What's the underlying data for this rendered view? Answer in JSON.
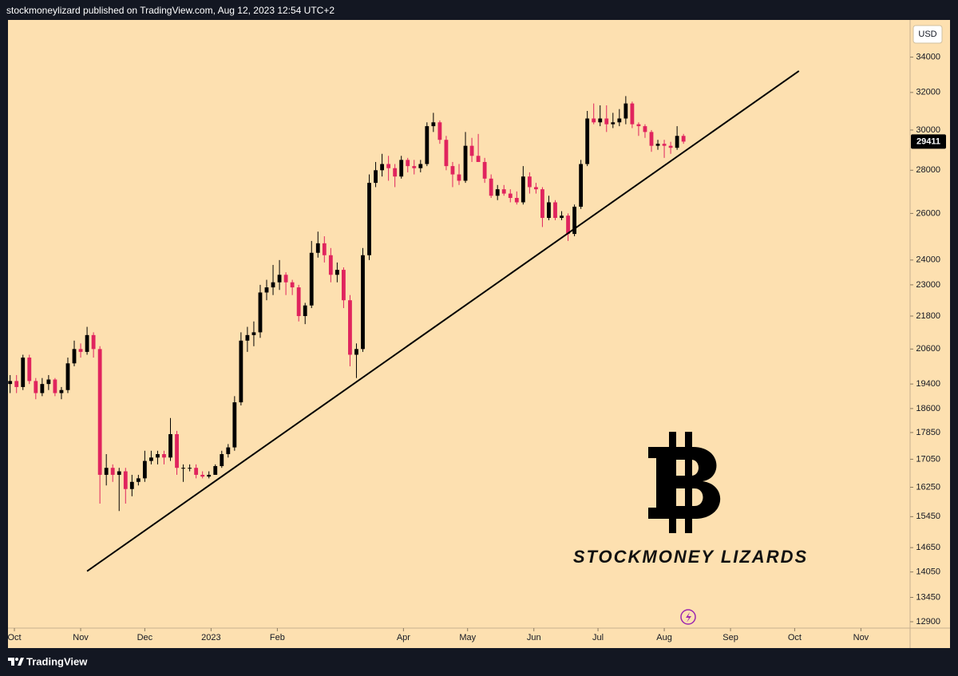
{
  "header": "stockmoneylizard published on TradingView.com, Aug 12, 2023 12:54 UTC+2",
  "footer": "TradingView",
  "chart_data": {
    "type": "candlestick",
    "currency": "USD",
    "last_price": 29411,
    "watermark": "STOCKMONEY LIZARDS",
    "up_color": "#000000",
    "down_color": "#e0245e",
    "background": "#fde0b0",
    "log_scale": true,
    "xlim": [
      -3,
      419
    ],
    "xticks": [
      {
        "value": 0,
        "label": "Oct"
      },
      {
        "value": 31,
        "label": "Nov"
      },
      {
        "value": 61,
        "label": "Dec"
      },
      {
        "value": 92,
        "label": "2023"
      },
      {
        "value": 123,
        "label": "Feb"
      },
      {
        "value": 182,
        "label": "Apr"
      },
      {
        "value": 212,
        "label": "May"
      },
      {
        "value": 243,
        "label": "Jun"
      },
      {
        "value": 273,
        "label": "Jul"
      },
      {
        "value": 304,
        "label": "Aug"
      },
      {
        "value": 335,
        "label": "Sep"
      },
      {
        "value": 365,
        "label": "Oct"
      },
      {
        "value": 396,
        "label": "Nov"
      }
    ],
    "ylim": [
      12330,
      36240
    ],
    "yticks": [
      34000,
      32000,
      30000,
      28000,
      26000,
      24000,
      23000,
      21800,
      20600,
      19400,
      18600,
      17850,
      17050,
      16250,
      15450,
      14650,
      14050,
      13450,
      12900
    ],
    "x": [
      -2,
      1,
      4,
      7,
      10,
      13,
      16,
      19,
      22,
      25,
      28,
      31,
      34,
      37,
      40,
      43,
      46,
      49,
      52,
      55,
      58,
      61,
      64,
      67,
      70,
      73,
      76,
      79,
      82,
      85,
      88,
      91,
      94,
      97,
      100,
      103,
      106,
      109,
      112,
      115,
      118,
      121,
      124,
      127,
      130,
      133,
      136,
      139,
      142,
      145,
      148,
      151,
      154,
      157,
      160,
      163,
      166,
      169,
      172,
      175,
      178,
      181,
      184,
      187,
      190,
      193,
      196,
      199,
      202,
      205,
      208,
      211,
      214,
      217,
      220,
      223,
      226,
      229,
      232,
      235,
      238,
      241,
      244,
      247,
      250,
      253,
      256,
      259,
      262,
      265,
      268,
      271,
      274,
      277,
      280,
      283,
      286,
      289,
      292,
      295,
      298,
      301,
      304,
      307,
      310,
      313
    ],
    "open": [
      19400,
      19500,
      19300,
      20300,
      19500,
      19100,
      19400,
      19550,
      19100,
      19200,
      20100,
      20600,
      20500,
      21100,
      20600,
      16600,
      16800,
      16600,
      16700,
      16200,
      16400,
      16500,
      17000,
      17100,
      17200,
      17100,
      17800,
      16800,
      16800,
      16800,
      16600,
      16550,
      16600,
      16850,
      17200,
      17400,
      18800,
      20900,
      21100,
      21200,
      22700,
      22900,
      23100,
      23400,
      23100,
      22900,
      21800,
      22200,
      24300,
      24700,
      24200,
      23400,
      23600,
      22400,
      20400,
      20600,
      24200,
      27400,
      28000,
      28300,
      28100,
      27700,
      28500,
      28200,
      28100,
      28300,
      30200,
      30400,
      29500,
      28200,
      27800,
      27500,
      29200,
      28700,
      28400,
      27600,
      26800,
      27100,
      26900,
      26700,
      26500,
      27700,
      27200,
      27100,
      25800,
      26500,
      25800,
      25900,
      25100,
      26300,
      28300,
      30600,
      30400,
      30600,
      30300,
      30400,
      30600,
      31400,
      30300,
      30200,
      29900,
      29200,
      29300,
      29200,
      29100,
      29700
    ],
    "high": [
      19700,
      19700,
      20400,
      20400,
      19600,
      19600,
      19700,
      19600,
      19300,
      20300,
      20900,
      20800,
      21400,
      21200,
      20700,
      17200,
      16900,
      16800,
      16800,
      16600,
      16600,
      17300,
      17300,
      17300,
      17300,
      18300,
      17900,
      16900,
      16900,
      16900,
      16700,
      16700,
      16900,
      17300,
      17500,
      19000,
      21200,
      21400,
      21600,
      23000,
      23200,
      23800,
      24000,
      23500,
      23200,
      23000,
      22300,
      24800,
      25200,
      25000,
      24500,
      23900,
      23700,
      22600,
      20800,
      24500,
      27800,
      28400,
      28800,
      28700,
      28300,
      28700,
      28600,
      28500,
      28500,
      30400,
      30900,
      30500,
      29700,
      28400,
      28300,
      29900,
      29600,
      29800,
      28600,
      27800,
      27300,
      27300,
      27100,
      27000,
      28200,
      27900,
      27400,
      27200,
      26800,
      26600,
      26100,
      26000,
      26400,
      28500,
      31000,
      31400,
      31300,
      31300,
      30900,
      31100,
      31800,
      31500,
      30400,
      30300,
      30000,
      29500,
      29500,
      29400,
      30200,
      29800
    ],
    "low": [
      19100,
      19100,
      19200,
      19400,
      18900,
      19000,
      19200,
      19000,
      18900,
      19100,
      20000,
      20300,
      20400,
      20300,
      15800,
      16300,
      16400,
      15600,
      15800,
      16000,
      16300,
      16400,
      16900,
      16900,
      16900,
      17000,
      16600,
      16400,
      16700,
      16500,
      16500,
      16500,
      16600,
      16800,
      17100,
      17300,
      18700,
      20500,
      20700,
      21000,
      22400,
      22600,
      22800,
      22600,
      22600,
      21600,
      21500,
      22100,
      24100,
      23900,
      23100,
      23100,
      22100,
      20000,
      19600,
      20500,
      24000,
      27200,
      27700,
      27500,
      27200,
      27600,
      27900,
      27800,
      27900,
      28200,
      29900,
      29300,
      28000,
      27200,
      27300,
      27400,
      28400,
      28500,
      27400,
      26700,
      26600,
      26800,
      26500,
      26400,
      26400,
      26900,
      26900,
      25400,
      25700,
      25700,
      25700,
      24800,
      25000,
      26200,
      28200,
      30300,
      30200,
      29900,
      30100,
      30200,
      30300,
      30100,
      29700,
      29600,
      28900,
      29000,
      28600,
      28800,
      29000,
      29300
    ],
    "close": [
      19500,
      19300,
      20300,
      19500,
      19100,
      19400,
      19550,
      19100,
      19200,
      20100,
      20600,
      20500,
      21100,
      20600,
      16600,
      16800,
      16600,
      16700,
      16200,
      16400,
      16500,
      17000,
      17100,
      17200,
      17100,
      17800,
      16800,
      16800,
      16800,
      16600,
      16550,
      16600,
      16850,
      17200,
      17400,
      18800,
      20900,
      21100,
      21200,
      22700,
      22900,
      23100,
      23400,
      23100,
      22900,
      21800,
      22200,
      24300,
      24700,
      24200,
      23400,
      23600,
      22400,
      20400,
      20600,
      24200,
      27400,
      28000,
      28300,
      28100,
      27700,
      28500,
      28200,
      28100,
      28300,
      30200,
      30400,
      29500,
      28200,
      27800,
      27500,
      29200,
      28700,
      28400,
      27600,
      26800,
      27100,
      26900,
      26700,
      26500,
      27700,
      27200,
      27100,
      25800,
      26500,
      25800,
      25900,
      25100,
      26300,
      28300,
      30600,
      30400,
      30600,
      30300,
      30400,
      30600,
      31400,
      30300,
      30200,
      29900,
      29200,
      29300,
      29200,
      29100,
      29700,
      29411
    ],
    "trendline": {
      "x": [
        34,
        367
      ],
      "values": [
        14070,
        33200
      ],
      "color": "#000000"
    }
  }
}
